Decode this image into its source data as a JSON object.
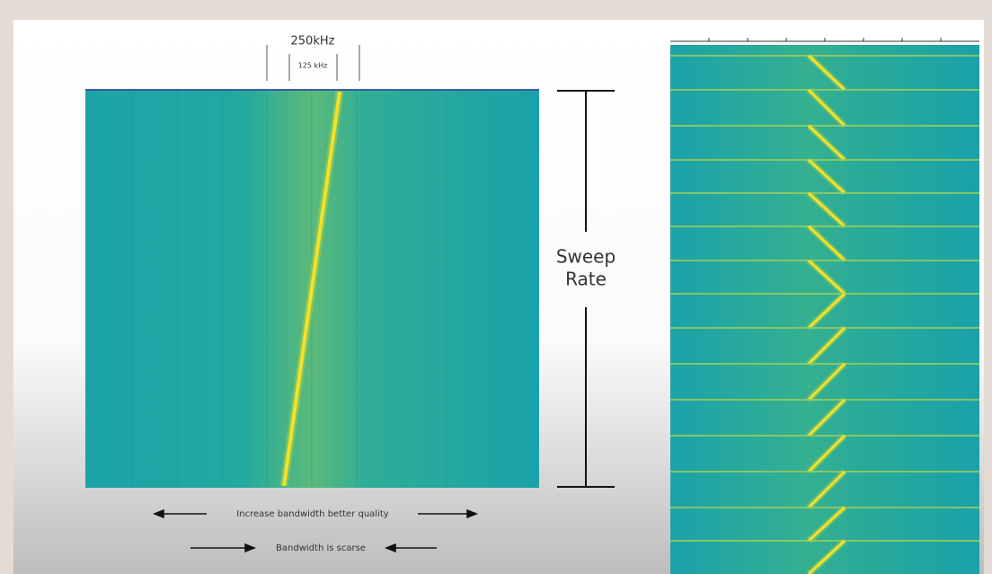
{
  "header": {
    "bandwidth_outer": "250kHz",
    "bandwidth_inner": "125 kHz"
  },
  "side_label": {
    "line1": "Sweep",
    "line2": "Rate"
  },
  "captions": {
    "top": "Increase bandwidth better quality",
    "bottom": "Bandwidth is scarse"
  }
}
